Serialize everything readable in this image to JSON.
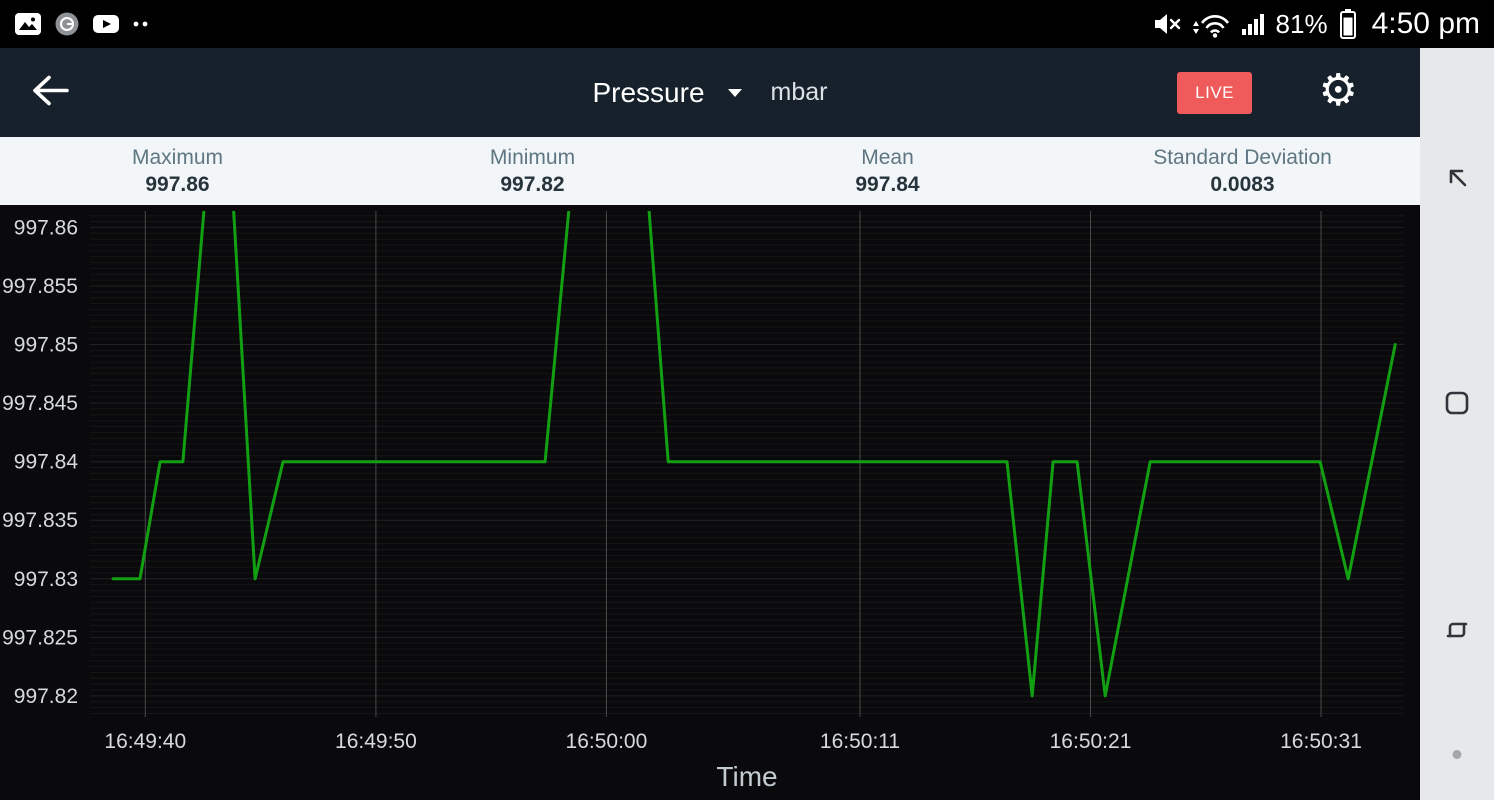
{
  "status_bar": {
    "time": "4:50 pm",
    "battery": "81%",
    "notification_icons": [
      "gallery-icon",
      "logo-icon",
      "youtube-icon",
      "more-icon"
    ],
    "status_icons": [
      "mute-icon",
      "wifi-icon",
      "signal-icon",
      "battery-icon"
    ]
  },
  "app_bar": {
    "sensor": "Pressure",
    "unit": "mbar",
    "live_label": "LIVE"
  },
  "stats": [
    {
      "label": "Maximum",
      "value": "997.86"
    },
    {
      "label": "Minimum",
      "value": "997.82"
    },
    {
      "label": "Mean",
      "value": "997.84"
    },
    {
      "label": "Standard Deviation",
      "value": "0.0083"
    }
  ],
  "colors": {
    "app_bar_bg": "#16212b",
    "live_button": "#ef5a5a",
    "line_green": "#12a012",
    "stats_bg": "#f2f6f9"
  },
  "chart_data": {
    "type": "line",
    "title": "",
    "xlabel": "Time",
    "ylabel": "",
    "unit": "mbar",
    "series_name": "Pressure",
    "legend": false,
    "grid": true,
    "x_ticks": [
      {
        "s": 0,
        "label": "16:49:40"
      },
      {
        "s": 10,
        "label": "16:49:50"
      },
      {
        "s": 20,
        "label": "16:50:00"
      },
      {
        "s": 31,
        "label": "16:50:11"
      },
      {
        "s": 41,
        "label": "16:50:21"
      },
      {
        "s": 51,
        "label": "16:50:31"
      }
    ],
    "y_ticks": [
      {
        "v": 997.86,
        "label": "997.86"
      },
      {
        "v": 997.855,
        "label": "997.855"
      },
      {
        "v": 997.85,
        "label": "997.85"
      },
      {
        "v": 997.845,
        "label": "997.845"
      },
      {
        "v": 997.84,
        "label": "997.84"
      },
      {
        "v": 997.835,
        "label": "997.835"
      },
      {
        "v": 997.83,
        "label": "997.83"
      },
      {
        "v": 997.825,
        "label": "997.825"
      },
      {
        "v": 997.82,
        "label": "997.82"
      }
    ],
    "axes": {
      "x_reference_time": "16:49:40",
      "x_domain_seconds": [
        -2.4,
        54.6
      ],
      "y_domain": [
        997.8182,
        997.8614
      ],
      "ylim": [
        997.82,
        997.86
      ],
      "grid_minor_step": 0.0005,
      "grid_major_step": 0.005
    },
    "points": [
      [
        -1.4,
        997.83
      ],
      [
        -0.23,
        997.83
      ],
      [
        0.64,
        997.84
      ],
      [
        1.63,
        997.84
      ],
      [
        2.59,
        997.8625
      ],
      [
        3.8,
        997.8625
      ],
      [
        4.76,
        997.83
      ],
      [
        5.97,
        997.84
      ],
      [
        17.34,
        997.84
      ],
      [
        18.42,
        997.8625
      ],
      [
        21.81,
        997.8625
      ],
      [
        22.68,
        997.84
      ],
      [
        37.38,
        997.84
      ],
      [
        38.47,
        997.82
      ],
      [
        39.38,
        997.84
      ],
      [
        40.42,
        997.84
      ],
      [
        41.64,
        997.82
      ],
      [
        43.59,
        997.84
      ],
      [
        50.96,
        997.84
      ],
      [
        52.18,
        997.83
      ],
      [
        54.22,
        997.85
      ]
    ],
    "peaks_clipped_at_top": true,
    "style": {
      "line_color": "#12a012",
      "line_width": 3,
      "bg": "#0a0a0c",
      "grid_minor": "#161616",
      "grid_major": "#222222",
      "grid_vertical": "#4a4a4a",
      "tick_text": "#d6dadd",
      "axis_title": "#c3ccd2"
    }
  },
  "nav_bar": {
    "buttons": [
      "nav-back",
      "nav-home",
      "nav-recents"
    ]
  }
}
